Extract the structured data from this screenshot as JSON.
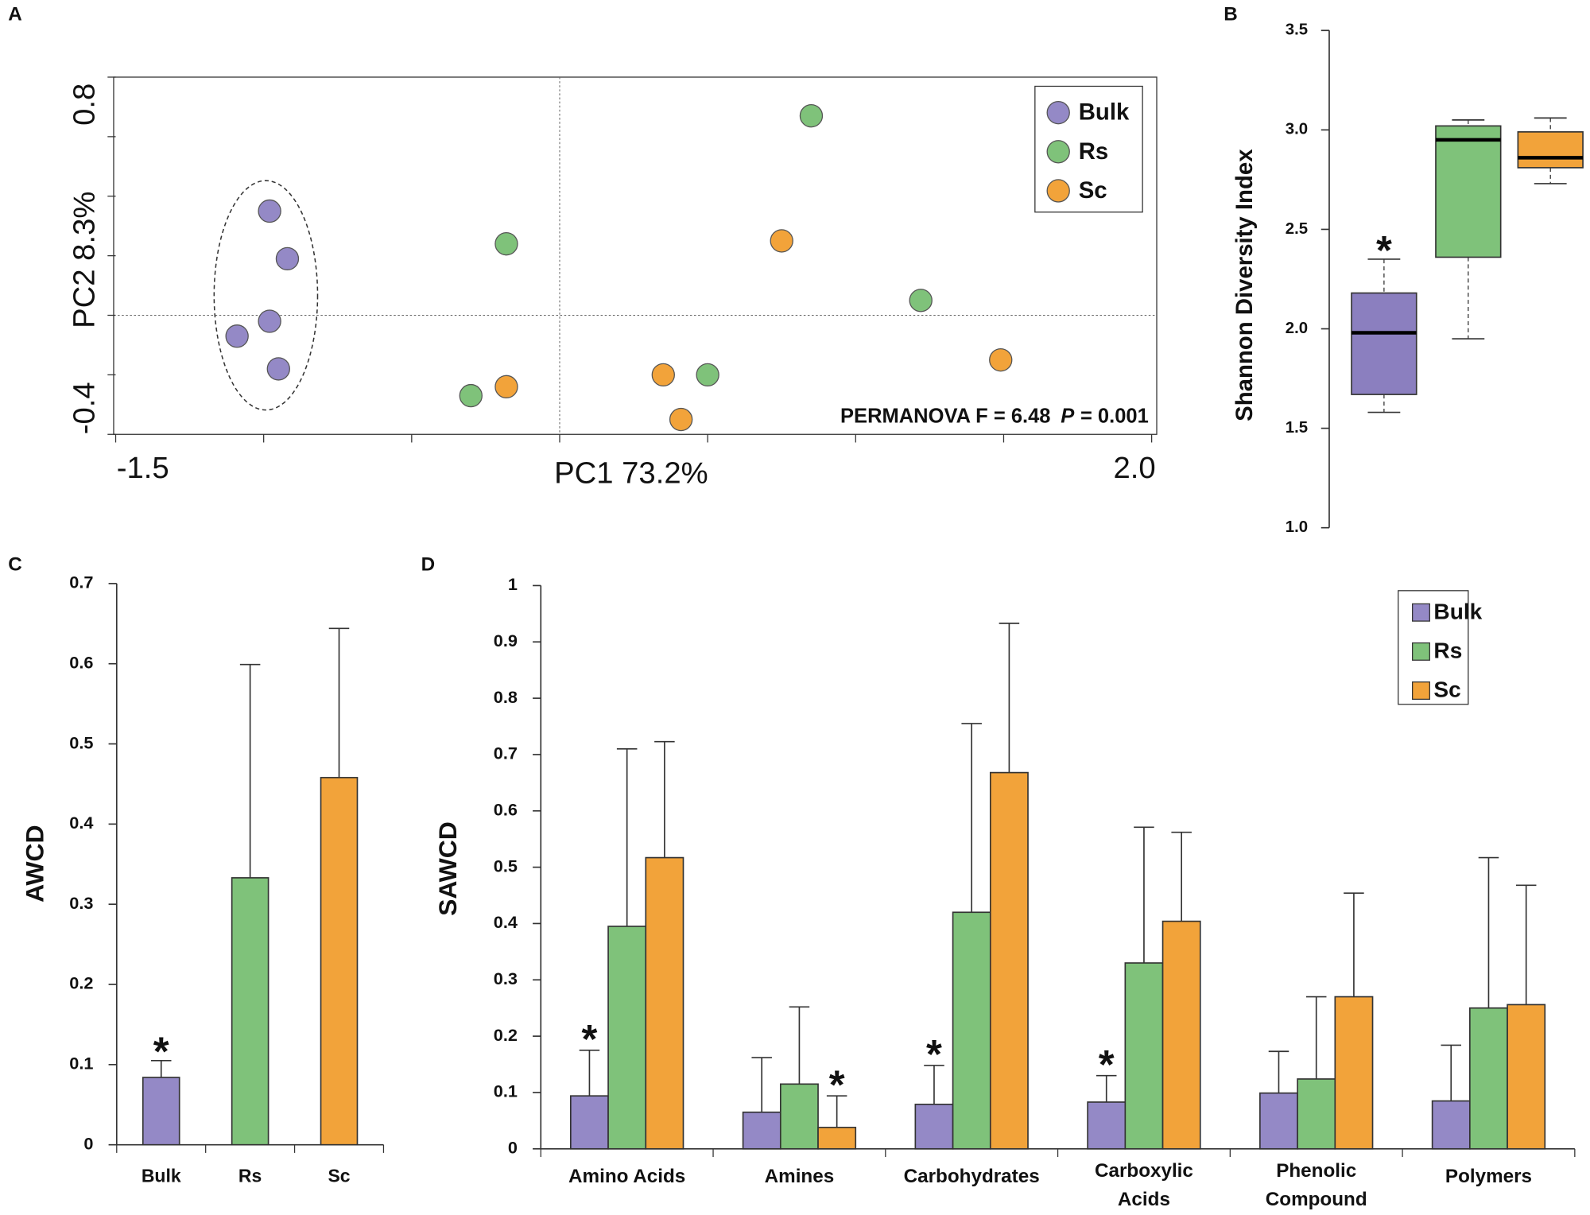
{
  "chart_data": [
    {
      "type": "scatter",
      "panel": "A",
      "xlabel": "PC1 73.2%",
      "ylabel": "PC2 8.3%",
      "xlim": [
        -1.5,
        2.0
      ],
      "ylim": [
        -0.4,
        0.8
      ],
      "xticks": [
        -1.5,
        {
          "value": 2.0,
          "label": "2.0"
        }
      ],
      "yticks": [
        0.8,
        -0.4
      ],
      "xminorticks": [
        -1,
        -0.5,
        0,
        0.5,
        1,
        1.5
      ],
      "yminorticks": [
        0.6,
        0.4,
        0.2,
        0,
        -0.2
      ],
      "vlines": [
        0
      ],
      "hlines": [
        0
      ],
      "legend": "upper right",
      "series": [
        {
          "name": "Bulk",
          "color": "#9489c6",
          "x": [
            -0.98,
            -0.92,
            -0.98,
            -1.09,
            -0.95
          ],
          "y": [
            0.35,
            0.19,
            -0.02,
            -0.07,
            -0.18
          ]
        },
        {
          "name": "Rs",
          "color": "#7fc27a",
          "x": [
            0.85,
            -0.18,
            1.22,
            -0.3,
            0.5
          ],
          "y": [
            0.67,
            0.24,
            0.05,
            -0.27,
            -0.2
          ]
        },
        {
          "name": "Sc",
          "color": "#f2a33a",
          "x": [
            0.75,
            -0.18,
            0.35,
            0.41,
            1.49
          ],
          "y": [
            0.25,
            -0.24,
            -0.2,
            -0.35,
            -0.15
          ]
        }
      ],
      "annotation": [
        "PERMANOVA F = 6.48",
        "P",
        "= 0.001"
      ]
    },
    {
      "type": "box",
      "panel": "B",
      "ylabel": "Shannon Diversity Index",
      "ylim": [
        1.0,
        3.5
      ],
      "yticks": [
        {
          "value": 1.0,
          "label": "1.0"
        },
        1.5,
        {
          "value": 2.0,
          "label": "2.0"
        },
        2.5,
        {
          "value": 3.0,
          "label": "3.0"
        },
        3.5
      ],
      "boxes": [
        {
          "color": "#8b7fbf",
          "whisker_low": 1.58,
          "q1": 1.67,
          "median": 1.98,
          "q3": 2.18,
          "whisker_high": 2.35,
          "marker": "*"
        },
        {
          "color": "#7fc27a",
          "whisker_low": 1.95,
          "q1": 2.36,
          "median": 2.95,
          "q3": 3.02,
          "whisker_high": 3.05
        },
        {
          "color": "#f2a33a",
          "whisker_low": 2.73,
          "q1": 2.81,
          "median": 2.86,
          "q3": 2.99,
          "whisker_high": 3.06
        }
      ]
    },
    {
      "type": "bar",
      "panel": "C",
      "ylabel": "AWCD",
      "categories": [
        "Bulk",
        "Rs",
        "Sc"
      ],
      "colors": [
        "#9489c6",
        "#7fc27a",
        "#f2a33a"
      ],
      "values": [
        0.084,
        0.333,
        0.458
      ],
      "errors": [
        0.021,
        0.266,
        0.186
      ],
      "markers": [
        "*",
        null,
        null
      ],
      "ylim": [
        0,
        0.7
      ],
      "yticks": [
        0,
        0.1,
        0.2,
        0.3,
        0.4,
        0.5,
        0.6,
        0.7
      ]
    },
    {
      "type": "grouped_bar",
      "panel": "D",
      "ylabel": "SAWCD",
      "legend": "upper right",
      "categories": [
        "Amino Acids",
        "Amines",
        "Carbohydrates",
        "Carboxylic\nAcids",
        "Phenolic\nCompound",
        "Polymers"
      ],
      "series": [
        {
          "name": "Bulk",
          "color": "#9489c6",
          "values": [
            0.094,
            0.065,
            0.079,
            0.083,
            0.099,
            0.085
          ],
          "errors": [
            0.081,
            0.097,
            0.069,
            0.047,
            0.074,
            0.099
          ],
          "markers": [
            "*",
            null,
            "*",
            "*",
            null,
            null
          ]
        },
        {
          "name": "Rs",
          "color": "#7fc27a",
          "values": [
            0.395,
            0.115,
            0.42,
            0.33,
            0.124,
            0.25
          ],
          "errors": [
            0.315,
            0.137,
            0.335,
            0.241,
            0.146,
            0.267
          ],
          "markers": [
            null,
            null,
            null,
            null,
            null,
            null
          ]
        },
        {
          "name": "Sc",
          "color": "#f2a33a",
          "values": [
            0.517,
            0.038,
            0.668,
            0.404,
            0.27,
            0.256
          ],
          "errors": [
            0.206,
            0.056,
            0.265,
            0.158,
            0.184,
            0.212
          ],
          "markers": [
            null,
            "*",
            null,
            null,
            null,
            null
          ]
        }
      ],
      "ylim": [
        0,
        1
      ],
      "yticks": [
        0,
        0.1,
        0.2,
        0.3,
        0.4,
        0.5,
        0.6,
        0.7,
        0.8,
        0.9,
        1
      ]
    }
  ]
}
